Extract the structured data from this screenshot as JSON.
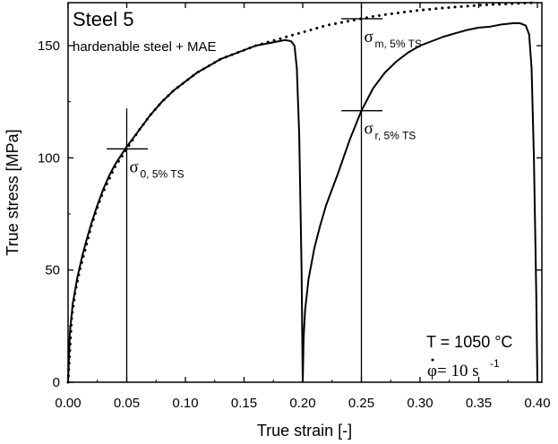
{
  "chart_data": {
    "type": "line",
    "title": "Steel 5",
    "subtitle": "hardenable steel + MAE",
    "xlabel": "True strain [-]",
    "ylabel": "True stress [MPa]",
    "xlim": [
      0,
      0.4
    ],
    "ylim": [
      0,
      170
    ],
    "xticks": [
      0.0,
      0.05,
      0.1,
      0.15,
      0.2,
      0.25,
      0.3,
      0.35,
      0.4
    ],
    "xtick_labels": [
      "0.00",
      "0.05",
      "0.10",
      "0.15",
      "0.20",
      "0.25",
      "0.30",
      "0.35",
      "0.40"
    ],
    "yticks": [
      0,
      50,
      100,
      150
    ],
    "ytick_labels": [
      "0",
      "50",
      "100",
      "150"
    ],
    "grid": false,
    "legend": "none",
    "series": [
      {
        "style": "solid",
        "x": [
          0.0,
          0.0015,
          0.004,
          0.008,
          0.012,
          0.016,
          0.02,
          0.025,
          0.03,
          0.035,
          0.04,
          0.045,
          0.05,
          0.06,
          0.07,
          0.08,
          0.09,
          0.1,
          0.11,
          0.12,
          0.13,
          0.14,
          0.15,
          0.16,
          0.17,
          0.18,
          0.185,
          0.19,
          0.193,
          0.195,
          0.197,
          0.199,
          0.2
        ],
        "y": [
          0,
          22,
          35,
          47,
          56,
          64,
          71,
          79,
          86,
          92,
          97,
          101,
          105,
          112,
          119,
          125,
          130,
          134,
          138,
          141,
          144,
          146,
          148,
          150,
          151,
          152,
          152.5,
          152,
          150,
          140,
          110,
          50,
          0
        ]
      },
      {
        "style": "solid",
        "x": [
          0.2,
          0.2008,
          0.202,
          0.205,
          0.21,
          0.215,
          0.22,
          0.23,
          0.24,
          0.25,
          0.26,
          0.27,
          0.28,
          0.29,
          0.3,
          0.31,
          0.32,
          0.33,
          0.34,
          0.35,
          0.36,
          0.37,
          0.38,
          0.385,
          0.39,
          0.393,
          0.395,
          0.397,
          0.399,
          0.4
        ],
        "y": [
          0,
          20,
          32,
          46,
          60,
          70,
          79,
          93,
          108,
          121,
          131,
          138,
          143,
          147,
          150,
          152,
          154,
          155.5,
          157,
          158,
          158.5,
          159.5,
          160,
          160,
          159,
          155,
          140,
          100,
          40,
          0
        ]
      },
      {
        "style": "dotted",
        "x": [
          0.0,
          0.003,
          0.006,
          0.01,
          0.015,
          0.02,
          0.025,
          0.03,
          0.04,
          0.05,
          0.06,
          0.07,
          0.08,
          0.09,
          0.1,
          0.11,
          0.12,
          0.13,
          0.14,
          0.15,
          0.16,
          0.17,
          0.18,
          0.19,
          0.2,
          0.21,
          0.22,
          0.23,
          0.24,
          0.25,
          0.26,
          0.27,
          0.28,
          0.29,
          0.3,
          0.31,
          0.32,
          0.33,
          0.34,
          0.35,
          0.36,
          0.37,
          0.38,
          0.39,
          0.4
        ],
        "y": [
          0,
          28,
          40,
          50,
          60,
          70,
          78,
          85,
          96,
          104,
          112,
          119,
          125,
          130,
          134,
          138,
          141,
          144,
          146,
          148,
          150,
          151.5,
          153,
          154.5,
          156,
          157.5,
          159,
          160,
          161,
          162,
          163,
          163.8,
          164.5,
          165.2,
          165.8,
          166.3,
          166.8,
          167.2,
          167.6,
          168,
          168.3,
          168.5,
          168.8,
          169,
          169.2
        ]
      }
    ],
    "markers": [
      {
        "x": 0.05,
        "y": 104,
        "label": "σ",
        "subscript": "0, 5% TS",
        "vspan": [
          0,
          122
        ],
        "hspan": [
          0.033,
          0.068
        ]
      },
      {
        "x": 0.25,
        "y": 162,
        "label": "σ",
        "subscript": "m, 5% TS",
        "vspan": [
          0,
          168
        ],
        "hspan": [
          0.233,
          0.268
        ]
      },
      {
        "x": 0.25,
        "y": 121,
        "label": "σ",
        "subscript": "r, 5% TS",
        "vspan": null,
        "hspan": [
          0.233,
          0.268
        ]
      }
    ],
    "annotations": {
      "temperature": "T = 1050 °C",
      "rate_symbol": "φ",
      "rate_text": " = 10 s",
      "rate_exp": "-1"
    }
  }
}
